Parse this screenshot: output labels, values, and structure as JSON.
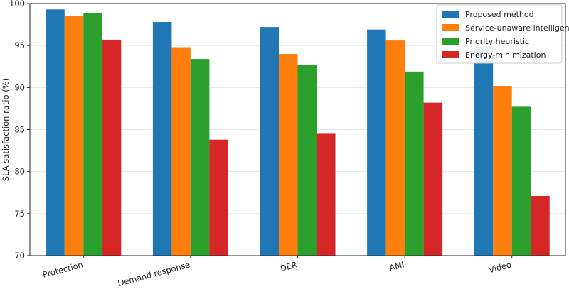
{
  "chart_data": {
    "type": "bar",
    "categories": [
      "Protection",
      "Demand response",
      "DER",
      "AMI",
      "Video"
    ],
    "series": [
      {
        "name": "Proposed method",
        "color": "#1f77b4",
        "values": [
          99.3,
          97.8,
          97.2,
          96.9,
          94.9
        ]
      },
      {
        "name": "Service-unaware intelligent",
        "color": "#ff7f0e",
        "values": [
          98.5,
          94.8,
          94.0,
          95.6,
          90.2
        ]
      },
      {
        "name": "Priority heuristic",
        "color": "#2ca02c",
        "values": [
          98.9,
          93.4,
          92.7,
          91.9,
          87.8
        ]
      },
      {
        "name": "Energy-minimization",
        "color": "#d62728",
        "values": [
          95.7,
          83.8,
          84.5,
          88.2,
          77.1
        ]
      }
    ],
    "title": "",
    "xlabel": "",
    "ylabel": "SLA satisfaction ratio (%)",
    "ylim": [
      70,
      100
    ],
    "yticks": [
      "70",
      "75",
      "80",
      "85",
      "90",
      "95",
      "100"
    ],
    "grid": "horizontal",
    "legend_position": "top-right"
  }
}
